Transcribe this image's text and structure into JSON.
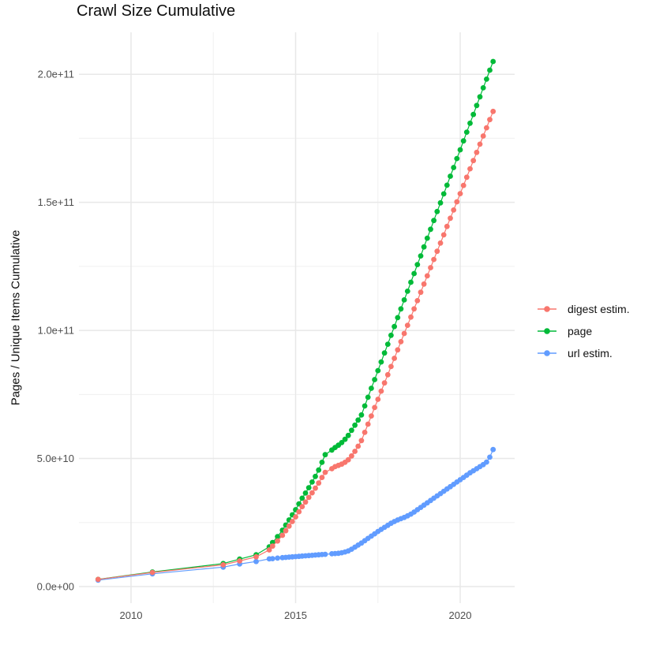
{
  "chart_data": {
    "type": "scatter",
    "title": "Crawl Size Cumulative",
    "xlabel": "",
    "ylabel": "Pages / Unique Items Cumulative",
    "value_unit": "billion (1e9) pages / items",
    "grid": true,
    "legend_position": "right",
    "xlim": [
      2008.5,
      2021.7
    ],
    "ylim_billion": [
      -6.5,
      216.4
    ],
    "x_ticks": [
      {
        "value": 2010,
        "label": "2010"
      },
      {
        "value": 2015,
        "label": "2015"
      },
      {
        "value": 2020,
        "label": "2020"
      }
    ],
    "y_ticks": [
      {
        "value_billion": 0,
        "label": "0.0e+00"
      },
      {
        "value_billion": 50,
        "label": "5.0e+10"
      },
      {
        "value_billion": 100,
        "label": "1.0e+11"
      },
      {
        "value_billion": 150,
        "label": "1.5e+11"
      },
      {
        "value_billion": 200,
        "label": "2.0e+11"
      }
    ],
    "x_minor": [
      2012.5,
      2017.5
    ],
    "y_minor_billion": [
      25,
      75,
      125,
      175
    ],
    "x_years": [
      2009.0,
      2010.65,
      2012.8,
      2013.3,
      2013.8,
      2014.2,
      2014.3,
      2014.45,
      2014.6,
      2014.7,
      2014.8,
      2014.9,
      2015.0,
      2015.1,
      2015.2,
      2015.3,
      2015.4,
      2015.5,
      2015.6,
      2015.7,
      2015.8,
      2015.9,
      2016.1,
      2016.2,
      2016.3,
      2016.4,
      2016.5,
      2016.6,
      2016.7,
      2016.8,
      2016.9,
      2017.0,
      2017.1,
      2017.2,
      2017.3,
      2017.4,
      2017.5,
      2017.6,
      2017.7,
      2017.8,
      2017.9,
      2018.0,
      2018.1,
      2018.2,
      2018.3,
      2018.4,
      2018.5,
      2018.6,
      2018.7,
      2018.8,
      2018.9,
      2019.0,
      2019.1,
      2019.2,
      2019.3,
      2019.4,
      2019.5,
      2019.6,
      2019.7,
      2019.8,
      2019.9,
      2020.0,
      2020.1,
      2020.2,
      2020.3,
      2020.4,
      2020.5,
      2020.6,
      2020.7,
      2020.8,
      2020.9,
      2021.0
    ],
    "series": [
      {
        "name": "digest estim.",
        "color": "#F8766D",
        "values_billion": [
          2.8,
          5.5,
          8.5,
          10.0,
          11.6,
          14.3,
          15.8,
          17.8,
          20.0,
          21.8,
          23.6,
          25.4,
          27.2,
          29.2,
          31.2,
          33.0,
          34.8,
          36.6,
          38.4,
          40.4,
          42.6,
          44.6,
          46.0,
          46.8,
          47.3,
          47.8,
          48.5,
          49.5,
          51.0,
          52.8,
          54.8,
          57.0,
          60.2,
          63.4,
          66.6,
          69.9,
          73.1,
          76.3,
          79.5,
          82.7,
          85.9,
          89.1,
          92.4,
          95.6,
          98.8,
          102.0,
          105.2,
          108.4,
          111.6,
          114.9,
          118.1,
          121.3,
          124.5,
          127.7,
          130.9,
          134.1,
          137.3,
          140.6,
          143.8,
          147.0,
          150.2,
          153.4,
          156.6,
          159.8,
          163.1,
          166.3,
          169.5,
          172.7,
          175.9,
          179.1,
          182.3,
          185.5
        ]
      },
      {
        "name": "page",
        "color": "#00BA38",
        "values_billion": [
          2.8,
          5.7,
          9.0,
          10.7,
          12.4,
          15.5,
          17.2,
          19.5,
          22.0,
          24.0,
          26.0,
          28.0,
          30.0,
          32.3,
          34.5,
          36.5,
          38.6,
          40.8,
          43.0,
          45.5,
          48.5,
          51.5,
          53.3,
          54.3,
          55.2,
          56.2,
          57.5,
          59.0,
          61.0,
          63.0,
          65.0,
          67.0,
          70.5,
          73.9,
          77.4,
          80.8,
          84.3,
          87.7,
          91.2,
          94.6,
          98.1,
          101.5,
          105.0,
          108.4,
          111.9,
          115.3,
          118.8,
          122.2,
          125.7,
          129.1,
          132.6,
          136.0,
          139.5,
          142.9,
          146.4,
          149.8,
          153.3,
          156.7,
          160.2,
          163.6,
          167.1,
          170.5,
          174.0,
          177.4,
          180.9,
          184.3,
          187.8,
          191.2,
          194.7,
          198.1,
          201.6,
          205.0
        ]
      },
      {
        "name": "url estim.",
        "color": "#619CFF",
        "values_billion": [
          2.5,
          5.0,
          7.6,
          8.8,
          9.8,
          10.8,
          10.9,
          11.1,
          11.3,
          11.4,
          11.5,
          11.6,
          11.7,
          11.8,
          11.9,
          12.0,
          12.1,
          12.2,
          12.3,
          12.4,
          12.5,
          12.6,
          12.8,
          12.9,
          13.0,
          13.2,
          13.5,
          13.9,
          14.6,
          15.4,
          16.2,
          17.0,
          17.9,
          18.8,
          19.7,
          20.6,
          21.5,
          22.3,
          23.1,
          23.9,
          24.7,
          25.4,
          26.0,
          26.5,
          27.0,
          27.6,
          28.3,
          29.1,
          30.0,
          30.9,
          31.8,
          32.7,
          33.6,
          34.5,
          35.4,
          36.3,
          37.2,
          38.1,
          39.0,
          39.9,
          40.8,
          41.7,
          42.6,
          43.5,
          44.4,
          45.2,
          46.0,
          46.8,
          47.6,
          48.6,
          50.5,
          53.5
        ]
      }
    ],
    "draw_order": [
      "page",
      "url estim.",
      "digest estim."
    ],
    "colors": {
      "grid_major": "#e8e8e8",
      "grid_minor": "#f0f0f0",
      "axis_text": "#4d4d4d",
      "title_text": "#0d0d0d"
    }
  }
}
